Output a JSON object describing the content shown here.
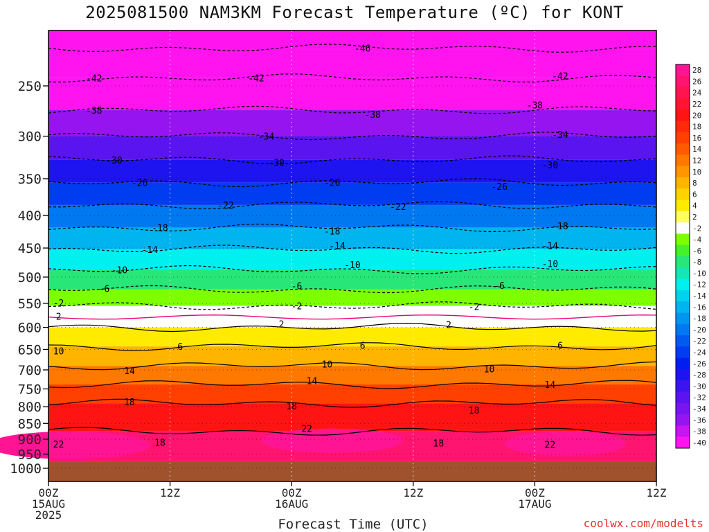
{
  "chart_data": {
    "type": "heatmap",
    "title": "2025081500 NAM3KM Forecast Temperature (ºC) for KONT",
    "xlabel": "Forecast Time (UTC)",
    "credit": "coolwx.com/modelts",
    "x_ticks": [
      {
        "h": 0,
        "lines": [
          "00Z",
          "15AUG",
          "2025"
        ]
      },
      {
        "h": 12,
        "lines": [
          "12Z"
        ]
      },
      {
        "h": 24,
        "lines": [
          "00Z",
          "16AUG"
        ]
      },
      {
        "h": 36,
        "lines": [
          "12Z"
        ]
      },
      {
        "h": 48,
        "lines": [
          "00Z",
          "17AUG"
        ]
      },
      {
        "h": 60,
        "lines": [
          "12Z"
        ]
      }
    ],
    "xlim_hours": [
      0,
      60
    ],
    "y_axis": "pressure (hPa), log scale",
    "y_ticks": [
      250,
      300,
      350,
      400,
      450,
      500,
      550,
      600,
      650,
      700,
      750,
      800,
      850,
      900,
      950,
      1000
    ],
    "ylim": [
      200,
      1030
    ],
    "surface_pressure": 975,
    "colorbar": [
      {
        "label": "28",
        "color": "#ff1493"
      },
      {
        "label": "26",
        "color": "#ff1470"
      },
      {
        "label": "24",
        "color": "#ff1450"
      },
      {
        "label": "22",
        "color": "#ff1432"
      },
      {
        "label": "20",
        "color": "#ff1414"
      },
      {
        "label": "18",
        "color": "#ff2a0a"
      },
      {
        "label": "16",
        "color": "#ff4000"
      },
      {
        "label": "14",
        "color": "#ff5a00"
      },
      {
        "label": "12",
        "color": "#ff7800"
      },
      {
        "label": "10",
        "color": "#ff9600"
      },
      {
        "label": "8",
        "color": "#ffb400"
      },
      {
        "label": "6",
        "color": "#ffd200"
      },
      {
        "label": "4",
        "color": "#ffeb00"
      },
      {
        "label": "2",
        "color": "#ffff60"
      },
      {
        "label": "-2",
        "color": "#ffffff"
      },
      {
        "label": "-4",
        "color": "#7dff00"
      },
      {
        "label": "-6",
        "color": "#46f02a"
      },
      {
        "label": "-8",
        "color": "#28e678"
      },
      {
        "label": "-10",
        "color": "#14e6b4"
      },
      {
        "label": "-12",
        "color": "#00f0f0"
      },
      {
        "label": "-14",
        "color": "#00d2f0"
      },
      {
        "label": "-16",
        "color": "#00b4f0"
      },
      {
        "label": "-18",
        "color": "#0096f0"
      },
      {
        "label": "-20",
        "color": "#0078f0"
      },
      {
        "label": "-22",
        "color": "#005af0"
      },
      {
        "label": "-24",
        "color": "#003cf0"
      },
      {
        "label": "-26",
        "color": "#001ef0"
      },
      {
        "label": "-28",
        "color": "#1e14f0"
      },
      {
        "label": "-30",
        "color": "#3c14f0"
      },
      {
        "label": "-32",
        "color": "#5a14f0"
      },
      {
        "label": "-34",
        "color": "#7814f0"
      },
      {
        "label": "-36",
        "color": "#9614f0"
      },
      {
        "label": "-38",
        "color": "#c814f0"
      },
      {
        "label": "-40",
        "color": "#ff14f0"
      }
    ],
    "ground_color": "#a0522d",
    "isotherm_levels_hpa": [
      {
        "t": -46,
        "p": 218,
        "dashed": true
      },
      {
        "t": -42,
        "p": 243,
        "dashed": true
      },
      {
        "t": -38,
        "p": 273,
        "dashed": true
      },
      {
        "t": -34,
        "p": 300,
        "dashed": true
      },
      {
        "t": -30,
        "p": 327,
        "dashed": true
      },
      {
        "t": -26,
        "p": 355,
        "dashed": true
      },
      {
        "t": -22,
        "p": 385,
        "dashed": true
      },
      {
        "t": -18,
        "p": 418,
        "dashed": true
      },
      {
        "t": -14,
        "p": 452,
        "dashed": true
      },
      {
        "t": -10,
        "p": 487,
        "dashed": true
      },
      {
        "t": -6,
        "p": 523,
        "dashed": true
      },
      {
        "t": -2,
        "p": 555,
        "dashed": true
      },
      {
        "t": 2,
        "p": 600,
        "dashed": false
      },
      {
        "t": 6,
        "p": 643,
        "dashed": false
      },
      {
        "t": 10,
        "p": 690,
        "dashed": false
      },
      {
        "t": 14,
        "p": 738,
        "dashed": false
      },
      {
        "t": 18,
        "p": 790,
        "dashed": false
      },
      {
        "t": 22,
        "p": 875,
        "dashed": false
      }
    ],
    "contour_labels": [
      {
        "text": "-46",
        "h": 31,
        "p": 218
      },
      {
        "text": "-42",
        "h": 4.5,
        "p": 243
      },
      {
        "text": "-42",
        "h": 20.5,
        "p": 243
      },
      {
        "text": "-42",
        "h": 50.5,
        "p": 241
      },
      {
        "text": "-38",
        "h": 4.5,
        "p": 273
      },
      {
        "text": "-38",
        "h": 32,
        "p": 277
      },
      {
        "text": "-38",
        "h": 48,
        "p": 268
      },
      {
        "text": "-34",
        "h": 21.5,
        "p": 300
      },
      {
        "text": "-34",
        "h": 50.5,
        "p": 298
      },
      {
        "text": "-30",
        "h": 6.5,
        "p": 327
      },
      {
        "text": "-30",
        "h": 22.5,
        "p": 330
      },
      {
        "text": "-30",
        "h": 49.5,
        "p": 333
      },
      {
        "text": "-26",
        "h": 9,
        "p": 355
      },
      {
        "text": "-26",
        "h": 28,
        "p": 355
      },
      {
        "text": "-26",
        "h": 44.5,
        "p": 360
      },
      {
        "text": "-22",
        "h": 17.5,
        "p": 385
      },
      {
        "text": "-22",
        "h": 34.5,
        "p": 387
      },
      {
        "text": "-18",
        "h": 11,
        "p": 418
      },
      {
        "text": "-18",
        "h": 28,
        "p": 423
      },
      {
        "text": "-18",
        "h": 50.5,
        "p": 415
      },
      {
        "text": "-14",
        "h": 10,
        "p": 452
      },
      {
        "text": "-14",
        "h": 28.5,
        "p": 446
      },
      {
        "text": "-14",
        "h": 49.5,
        "p": 446
      },
      {
        "text": "-10",
        "h": 7,
        "p": 487
      },
      {
        "text": "-10",
        "h": 30,
        "p": 478
      },
      {
        "text": "-10",
        "h": 49.5,
        "p": 476
      },
      {
        "text": "-6",
        "h": 5.5,
        "p": 521
      },
      {
        "text": "-6",
        "h": 24.5,
        "p": 516
      },
      {
        "text": "-6",
        "h": 44.5,
        "p": 515
      },
      {
        "text": "-2",
        "h": 1,
        "p": 549
      },
      {
        "text": "-2",
        "h": 24.5,
        "p": 555
      },
      {
        "text": "-2",
        "h": 42,
        "p": 556
      },
      {
        "text": "2",
        "h": 1,
        "p": 576
      },
      {
        "text": "2",
        "h": 23,
        "p": 592
      },
      {
        "text": "2",
        "h": 39.5,
        "p": 594
      },
      {
        "text": "6",
        "h": 13,
        "p": 643
      },
      {
        "text": "6",
        "h": 31,
        "p": 640
      },
      {
        "text": "6",
        "h": 50.5,
        "p": 640
      },
      {
        "text": "10",
        "h": 1,
        "p": 653
      },
      {
        "text": "10",
        "h": 27.5,
        "p": 685
      },
      {
        "text": "10",
        "h": 43.5,
        "p": 697
      },
      {
        "text": "14",
        "h": 8,
        "p": 702
      },
      {
        "text": "14",
        "h": 26,
        "p": 728
      },
      {
        "text": "14",
        "h": 49.5,
        "p": 738
      },
      {
        "text": "18",
        "h": 8,
        "p": 786
      },
      {
        "text": "18",
        "h": 24,
        "p": 798
      },
      {
        "text": "18",
        "h": 42,
        "p": 810
      },
      {
        "text": "22",
        "h": 25.5,
        "p": 865
      },
      {
        "text": "22",
        "h": 1,
        "p": 916
      },
      {
        "text": "18",
        "h": 11,
        "p": 910
      },
      {
        "text": "18",
        "h": 38.5,
        "p": 912
      },
      {
        "text": "22",
        "h": 49.5,
        "p": 917
      }
    ]
  }
}
